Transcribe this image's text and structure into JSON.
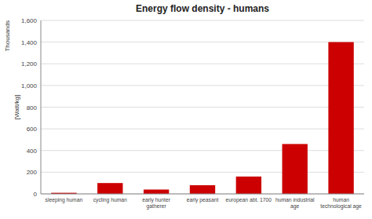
{
  "chart_data": {
    "type": "bar",
    "title": "Energy flow density - humans",
    "categories": [
      "sleeping human",
      "cycling human",
      "early hunter\ngatherer",
      "early peasant",
      "european abt. 1700",
      "human industrial\nage",
      "human\ntechnological age"
    ],
    "values": [
      10,
      100,
      40,
      80,
      160,
      460,
      1400
    ],
    "color": "#cc0000",
    "ylabel": "[Watt/kg]",
    "annotation": "Thousands",
    "ylim": [
      0,
      1600
    ],
    "yticks": [
      0,
      200,
      400,
      600,
      800,
      {
        "value": 1000,
        "label": "1,000"
      },
      {
        "value": 1200,
        "label": "1,200"
      },
      {
        "value": 1400,
        "label": "1,400"
      },
      {
        "value": 1600,
        "label": "1,600"
      }
    ],
    "grid": true
  }
}
